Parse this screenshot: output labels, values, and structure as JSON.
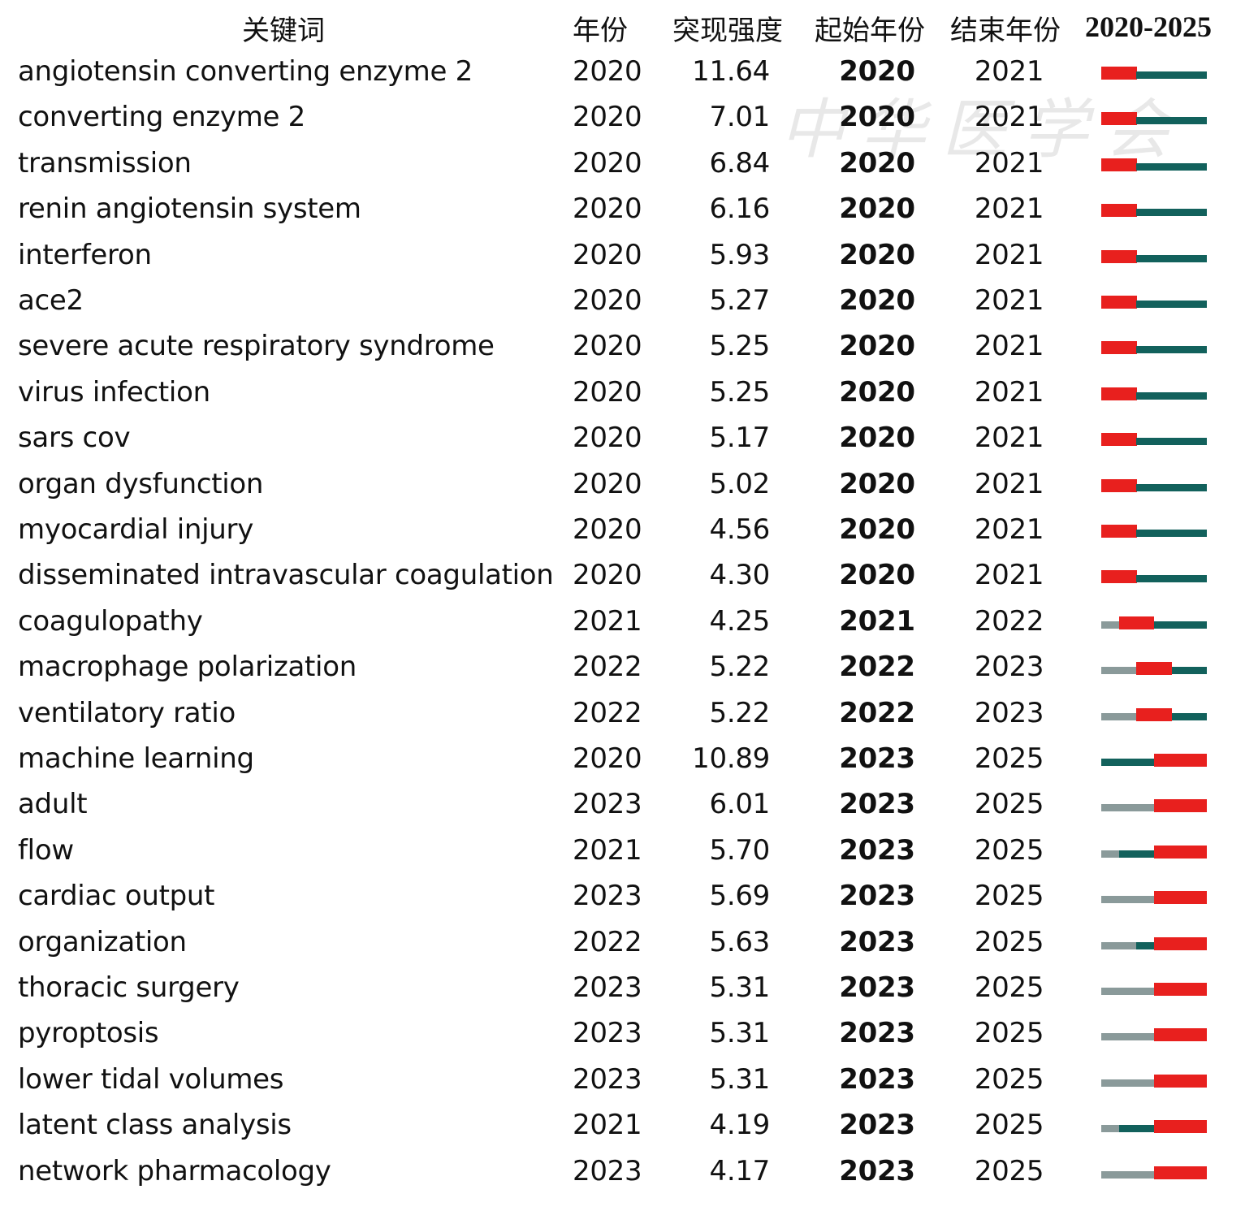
{
  "headers": {
    "keyword": "关键词",
    "year": "年份",
    "strength": "突现强度",
    "begin": "起始年份",
    "end": "结束年份",
    "range": "2020-2025"
  },
  "watermark": "中华医学会",
  "colors": {
    "burst": "#e8201e",
    "active": "#12615c",
    "inactive": "#8a9a9a"
  },
  "chart_data": {
    "type": "table",
    "title": "",
    "range_start": 2020,
    "range_end": 2025,
    "rows": [
      {
        "keyword": "angiotensin converting enzyme 2",
        "year": 2020,
        "strength": "11.64",
        "begin": 2020,
        "end": 2021
      },
      {
        "keyword": "converting enzyme 2",
        "year": 2020,
        "strength": "7.01",
        "begin": 2020,
        "end": 2021
      },
      {
        "keyword": "transmission",
        "year": 2020,
        "strength": "6.84",
        "begin": 2020,
        "end": 2021
      },
      {
        "keyword": "renin angiotensin system",
        "year": 2020,
        "strength": "6.16",
        "begin": 2020,
        "end": 2021
      },
      {
        "keyword": "interferon",
        "year": 2020,
        "strength": "5.93",
        "begin": 2020,
        "end": 2021
      },
      {
        "keyword": "ace2",
        "year": 2020,
        "strength": "5.27",
        "begin": 2020,
        "end": 2021
      },
      {
        "keyword": "severe acute respiratory syndrome",
        "year": 2020,
        "strength": "5.25",
        "begin": 2020,
        "end": 2021
      },
      {
        "keyword": "virus infection",
        "year": 2020,
        "strength": "5.25",
        "begin": 2020,
        "end": 2021
      },
      {
        "keyword": "sars cov",
        "year": 2020,
        "strength": "5.17",
        "begin": 2020,
        "end": 2021
      },
      {
        "keyword": "organ dysfunction",
        "year": 2020,
        "strength": "5.02",
        "begin": 2020,
        "end": 2021
      },
      {
        "keyword": "myocardial injury",
        "year": 2020,
        "strength": "4.56",
        "begin": 2020,
        "end": 2021
      },
      {
        "keyword": "disseminated intravascular coagulation",
        "year": 2020,
        "strength": "4.30",
        "begin": 2020,
        "end": 2021
      },
      {
        "keyword": "coagulopathy",
        "year": 2021,
        "strength": "4.25",
        "begin": 2021,
        "end": 2022
      },
      {
        "keyword": "macrophage polarization",
        "year": 2022,
        "strength": "5.22",
        "begin": 2022,
        "end": 2023
      },
      {
        "keyword": "ventilatory ratio",
        "year": 2022,
        "strength": "5.22",
        "begin": 2022,
        "end": 2023
      },
      {
        "keyword": "machine learning",
        "year": 2020,
        "strength": "10.89",
        "begin": 2023,
        "end": 2025
      },
      {
        "keyword": "adult",
        "year": 2023,
        "strength": "6.01",
        "begin": 2023,
        "end": 2025
      },
      {
        "keyword": "flow",
        "year": 2021,
        "strength": "5.70",
        "begin": 2023,
        "end": 2025
      },
      {
        "keyword": "cardiac output",
        "year": 2023,
        "strength": "5.69",
        "begin": 2023,
        "end": 2025
      },
      {
        "keyword": "organization",
        "year": 2022,
        "strength": "5.63",
        "begin": 2023,
        "end": 2025
      },
      {
        "keyword": "thoracic surgery",
        "year": 2023,
        "strength": "5.31",
        "begin": 2023,
        "end": 2025
      },
      {
        "keyword": "pyroptosis",
        "year": 2023,
        "strength": "5.31",
        "begin": 2023,
        "end": 2025
      },
      {
        "keyword": "lower tidal volumes",
        "year": 2023,
        "strength": "5.31",
        "begin": 2023,
        "end": 2025
      },
      {
        "keyword": "latent class analysis",
        "year": 2021,
        "strength": "4.19",
        "begin": 2023,
        "end": 2025
      },
      {
        "keyword": "network pharmacology",
        "year": 2023,
        "strength": "4.17",
        "begin": 2023,
        "end": 2025
      }
    ]
  }
}
